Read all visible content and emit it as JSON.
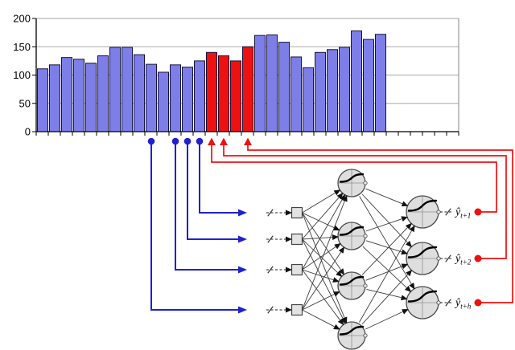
{
  "figure": {
    "description": "Time-series bar chart feeding a multilayer perceptron for multi-step forecasting"
  },
  "chart_data": {
    "type": "bar",
    "title": "",
    "xlabel": "",
    "ylabel": "",
    "y_ticks": [
      "0",
      "50",
      "100",
      "150",
      "200"
    ],
    "ylim": [
      0,
      200
    ],
    "grid": true,
    "values": [
      111,
      118,
      131,
      128,
      121,
      134,
      149,
      149,
      136,
      119,
      105,
      118,
      114,
      125,
      140,
      134,
      125,
      150,
      170,
      171,
      158,
      132,
      113,
      140,
      145,
      149,
      178,
      163,
      172
    ],
    "highlighted_indices": [
      14,
      15,
      16,
      17
    ],
    "bar_color": "#7e7ee8",
    "bar_outline": "#14143c",
    "highlight_color": "#ee1111",
    "empty_future_tick_slots": 6
  },
  "annotations": {
    "input_bars": [
      13,
      12,
      11,
      9
    ],
    "forecast_bars": [
      14,
      15,
      17
    ],
    "blue": "#2020cf",
    "red": "#ee1111"
  },
  "network": {
    "inputs": 4,
    "hidden": 4,
    "outputs": 3,
    "output_labels": [
      {
        "base": "ŷ",
        "sub": "t+1"
      },
      {
        "base": "ŷ",
        "sub": "t+2"
      },
      {
        "base": "ŷ",
        "sub": "t+h"
      }
    ]
  },
  "colors": {
    "gridline": "#c4c4c4",
    "axis": "#000000",
    "plot_border": "#999999",
    "node_fill": "#dedede",
    "node_stroke": "#4a4a4a",
    "edge": "#3c3c3c"
  }
}
